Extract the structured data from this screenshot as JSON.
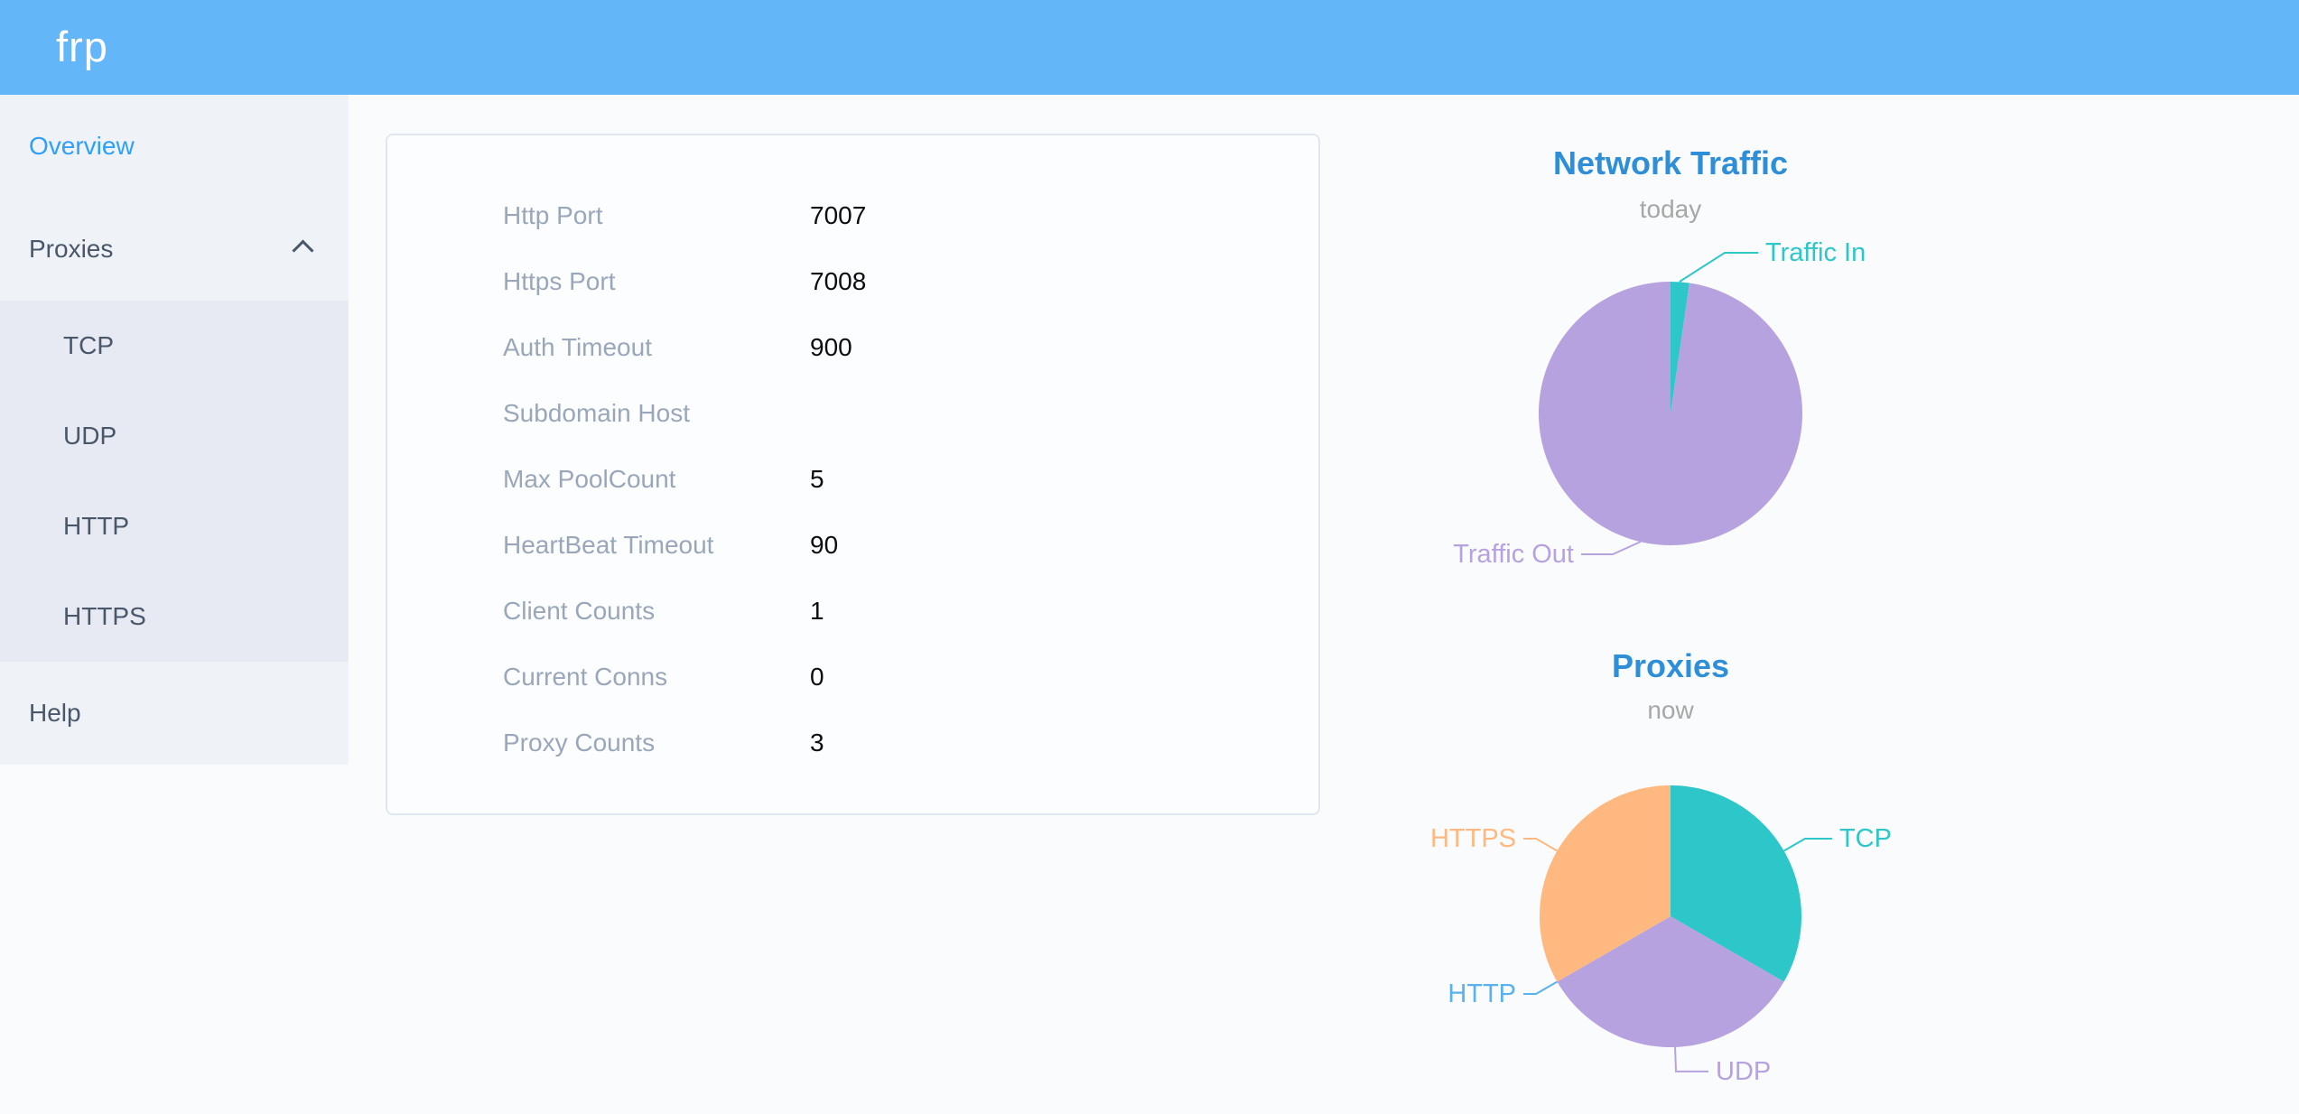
{
  "header": {
    "logo": "frp"
  },
  "sidebar": {
    "items": [
      {
        "label": "Overview",
        "active": true
      },
      {
        "label": "Proxies",
        "expanded": true,
        "children": [
          "TCP",
          "UDP",
          "HTTP",
          "HTTPS"
        ]
      },
      {
        "label": "Help"
      }
    ]
  },
  "overview": {
    "rows": [
      {
        "label": "Http Port",
        "value": "7007"
      },
      {
        "label": "Https Port",
        "value": "7008"
      },
      {
        "label": "Auth Timeout",
        "value": "900"
      },
      {
        "label": "Subdomain Host",
        "value": ""
      },
      {
        "label": "Max PoolCount",
        "value": "5"
      },
      {
        "label": "HeartBeat Timeout",
        "value": "90"
      },
      {
        "label": "Client Counts",
        "value": "1"
      },
      {
        "label": "Current Conns",
        "value": "0"
      },
      {
        "label": "Proxy Counts",
        "value": "3"
      }
    ]
  },
  "colors": {
    "header_background": "#63b7f9",
    "sidebar_background": "#eff2f7",
    "submenu_background": "#e7eaf2",
    "menu_text": "#48576a",
    "menu_active": "#2ea0fc",
    "table_label": "#9aa7ba",
    "chart_title": "#2e8fd8",
    "chart_subtitle": "#a7a7a7"
  },
  "chart_data": [
    {
      "type": "pie",
      "title": "Network Traffic",
      "subtitle": "today",
      "label_position": "outside",
      "legend": "none",
      "series": [
        {
          "name": "Traffic In",
          "value": 2.3,
          "color": "#2ec7c9"
        },
        {
          "name": "Traffic Out",
          "value": 97.7,
          "color": "#b6a2de"
        }
      ]
    },
    {
      "type": "pie",
      "title": "Proxies",
      "subtitle": "now",
      "label_position": "outside",
      "legend": "none",
      "series": [
        {
          "name": "TCP",
          "value": 1,
          "color": "#2ec7c9"
        },
        {
          "name": "UDP",
          "value": 1,
          "color": "#b6a2de"
        },
        {
          "name": "HTTP",
          "value": 0,
          "color": "#5ab1ef"
        },
        {
          "name": "HTTPS",
          "value": 1,
          "color": "#ffb980"
        }
      ]
    }
  ]
}
